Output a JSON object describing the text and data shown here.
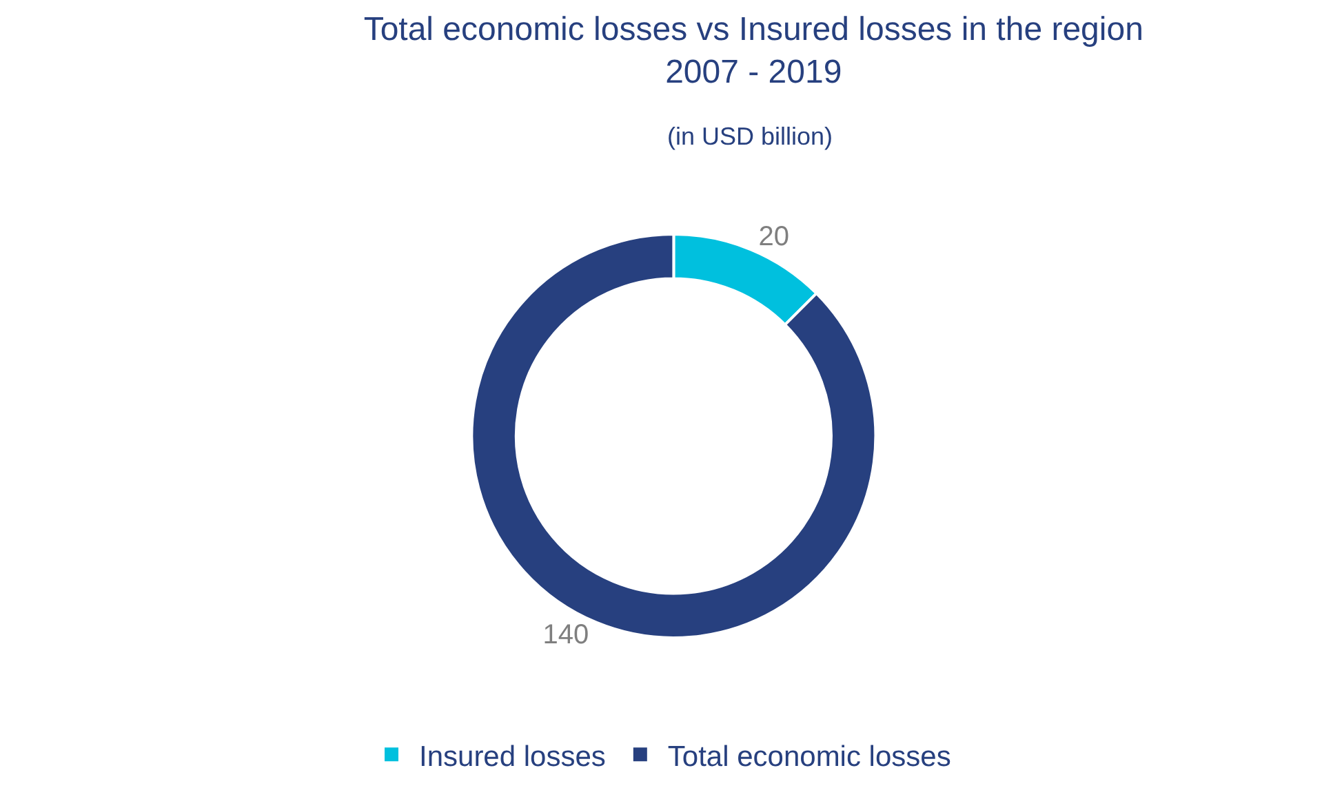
{
  "chart_data": {
    "type": "donut",
    "title": "Total economic losses vs Insured losses in the region\n2007 - 2019",
    "subtitle": "(in USD billion)",
    "categories": [
      "Insured losses",
      "Total economic losses"
    ],
    "values": [
      20,
      140
    ],
    "colors": [
      "#00c0de",
      "#27407f"
    ],
    "data_labels": true,
    "legend": "bottom"
  }
}
